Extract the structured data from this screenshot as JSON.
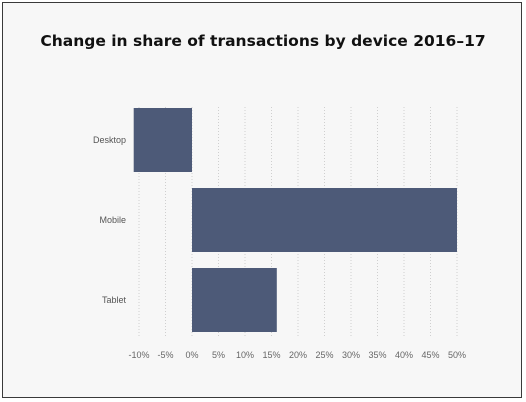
{
  "chart_data": {
    "type": "bar",
    "orientation": "horizontal",
    "title": "Change in share of transactions by device 2016–17",
    "xlabel": "",
    "ylabel": "",
    "categories": [
      "Desktop",
      "Mobile",
      "Tablet"
    ],
    "values": [
      -11,
      50,
      16
    ],
    "xlim": [
      -10,
      50
    ],
    "xticks": [
      "-10%",
      "-5%",
      "0%",
      "5%",
      "10%",
      "15%",
      "20%",
      "25%",
      "30%",
      "35%",
      "40%",
      "45%",
      "50%"
    ],
    "grid": "vertical dotted",
    "legend": "none",
    "bar_color": "#4d5a78"
  }
}
